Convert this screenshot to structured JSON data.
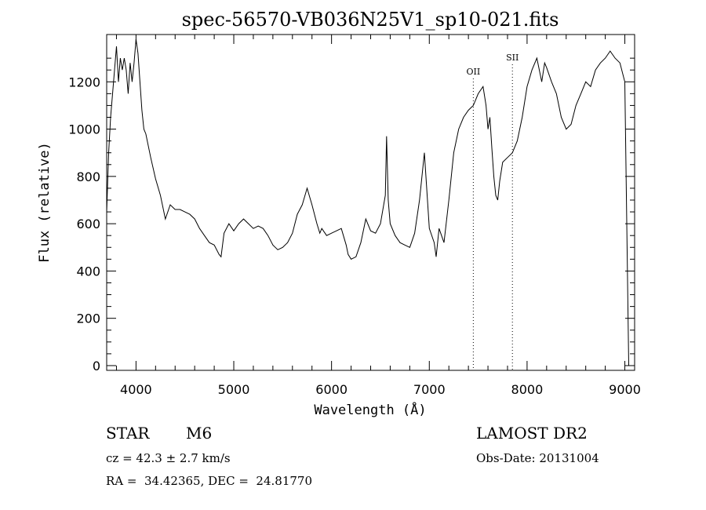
{
  "chart_data": {
    "type": "line",
    "title": "spec-56570-VB036N25V1_sp10-021.fits",
    "xlabel": "Wavelength (Å)",
    "ylabel": "Flux (relative)",
    "xlim": [
      3700,
      9100
    ],
    "ylim": [
      -20,
      1400
    ],
    "x_ticks": [
      4000,
      5000,
      6000,
      7000,
      8000,
      9000
    ],
    "y_ticks": [
      0,
      200,
      400,
      600,
      800,
      1000,
      1200
    ],
    "grid": false,
    "series": [
      {
        "x": [
          3700,
          3720,
          3740,
          3760,
          3780,
          3800,
          3820,
          3840,
          3860,
          3880,
          3900,
          3920,
          3940,
          3960,
          3980,
          4000,
          4020,
          4040,
          4060,
          4080,
          4100,
          4150,
          4200,
          4250,
          4300,
          4350,
          4400,
          4450,
          4500,
          4550,
          4600,
          4650,
          4700,
          4750,
          4800,
          4850,
          4870,
          4900,
          4950,
          5000,
          5050,
          5100,
          5150,
          5200,
          5250,
          5300,
          5350,
          5400,
          5450,
          5500,
          5550,
          5600,
          5650,
          5700,
          5750,
          5800,
          5850,
          5880,
          5900,
          5950,
          6000,
          6050,
          6100,
          6150,
          6170,
          6200,
          6250,
          6300,
          6350,
          6400,
          6450,
          6500,
          6550,
          6563,
          6580,
          6600,
          6650,
          6700,
          6750,
          6800,
          6850,
          6900,
          6950,
          7000,
          7050,
          7070,
          7100,
          7150,
          7200,
          7250,
          7300,
          7350,
          7400,
          7450,
          7500,
          7550,
          7580,
          7600,
          7620,
          7640,
          7660,
          7680,
          7700,
          7720,
          7750,
          7800,
          7850,
          7900,
          7950,
          8000,
          8050,
          8100,
          8150,
          8180,
          8200,
          8250,
          8300,
          8350,
          8400,
          8450,
          8500,
          8550,
          8600,
          8650,
          8700,
          8750,
          8800,
          8850,
          8900,
          8950,
          9000,
          9020,
          9040
        ],
        "y": [
          650,
          900,
          1050,
          1150,
          1250,
          1350,
          1200,
          1300,
          1250,
          1300,
          1250,
          1150,
          1280,
          1200,
          1280,
          1380,
          1320,
          1200,
          1080,
          1000,
          980,
          880,
          790,
          720,
          620,
          680,
          660,
          660,
          650,
          640,
          620,
          580,
          550,
          520,
          510,
          470,
          460,
          560,
          600,
          570,
          600,
          620,
          600,
          580,
          590,
          580,
          550,
          510,
          490,
          500,
          520,
          560,
          640,
          680,
          750,
          680,
          600,
          560,
          580,
          550,
          560,
          570,
          580,
          510,
          470,
          450,
          460,
          520,
          620,
          570,
          560,
          600,
          720,
          970,
          700,
          600,
          550,
          520,
          510,
          500,
          560,
          700,
          900,
          580,
          520,
          460,
          580,
          520,
          700,
          900,
          1000,
          1050,
          1080,
          1100,
          1150,
          1180,
          1100,
          1000,
          1050,
          920,
          800,
          720,
          700,
          780,
          860,
          880,
          900,
          950,
          1050,
          1180,
          1250,
          1300,
          1200,
          1280,
          1260,
          1200,
          1150,
          1050,
          1000,
          1020,
          1100,
          1150,
          1200,
          1180,
          1250,
          1280,
          1300,
          1330,
          1300,
          1280,
          1200,
          600,
          0
        ]
      }
    ],
    "annotations": [
      {
        "label": "OII",
        "x": 7450
      },
      {
        "label": "SII",
        "x": 7850
      }
    ]
  },
  "info": {
    "star_label": "STAR",
    "star_class": "M6",
    "survey": "LAMOST DR2",
    "cz": "cz = 42.3 ± 2.7 km/s",
    "obs_date": "Obs-Date: 20131004",
    "radec": "RA =  34.42365, DEC =  24.81770"
  }
}
